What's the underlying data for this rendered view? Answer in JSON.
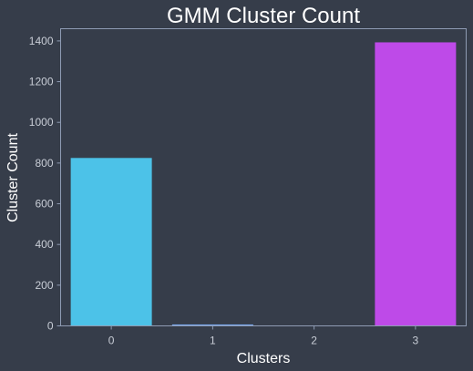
{
  "chart_data": {
    "type": "bar",
    "title": "GMM Cluster Count",
    "xlabel": "Clusters",
    "ylabel": "Cluster Count",
    "categories": [
      "0",
      "1",
      "2",
      "3"
    ],
    "values": [
      825,
      7,
      0,
      1393
    ],
    "colors": [
      "#4cc2e8",
      "#7aa8f0",
      "#a67de8",
      "#be4ae8"
    ],
    "ylim": [
      0,
      1460
    ],
    "yticks": [
      "0",
      "200",
      "400",
      "600",
      "800",
      "1000",
      "1200",
      "1400"
    ],
    "grid": false,
    "legend": "none"
  },
  "theme": {
    "background": "#363d4a",
    "frame": "#8e9bb3"
  }
}
